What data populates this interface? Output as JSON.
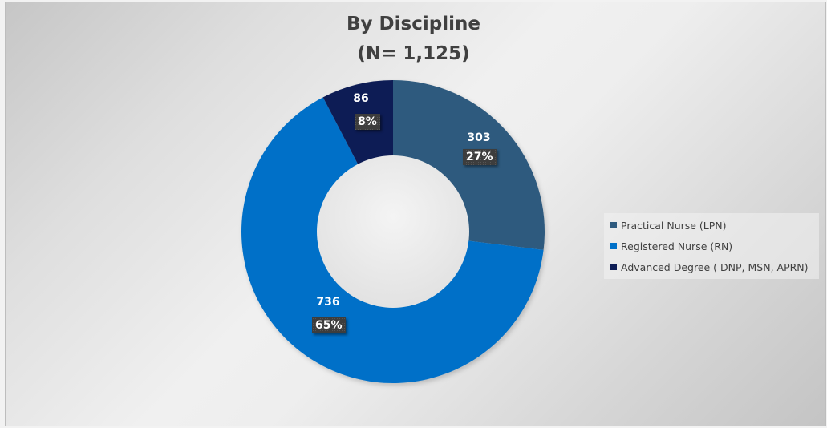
{
  "chart_data": {
    "type": "pie",
    "subtype": "donut",
    "title": "By Discipline",
    "subtitle": "(N= 1,125)",
    "total": 1125,
    "categories": [
      "Practical Nurse  (LPN)",
      "Registered Nurse (RN)",
      "Advanced Degree ( DNP, MSN, APRN)"
    ],
    "values": [
      303,
      736,
      86
    ],
    "percent_labels": [
      "27%",
      "65%",
      "8%"
    ],
    "colors": [
      "#2E5A7E",
      "#0070C8",
      "#0D1D55"
    ],
    "legend_position": "right",
    "start_angle_deg": 0,
    "direction": "clockwise"
  },
  "labels": {
    "lpn": {
      "value": "303",
      "pct": "27%"
    },
    "rn": {
      "value": "736",
      "pct": "65%"
    },
    "adv": {
      "value": "86",
      "pct": "8%"
    }
  },
  "legend": {
    "items": [
      {
        "label": "Practical Nurse  (LPN)",
        "color": "#2E5A7E"
      },
      {
        "label": "Registered Nurse (RN)",
        "color": "#0070C8"
      },
      {
        "label": "Advanced Degree ( DNP, MSN, APRN)",
        "color": "#0D1D55"
      }
    ]
  }
}
